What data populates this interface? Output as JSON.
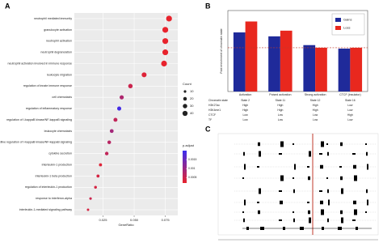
{
  "panel_labels": [
    "A",
    "B",
    "C"
  ],
  "chart_data": [
    {
      "type": "dot",
      "categories": [
        "neutrophil mediated immunity",
        "granulocyte activation",
        "neutrophil activation",
        "neutrophil degranulation",
        "neutrophil activation involved in immune response",
        "leukocyte migration",
        "regulation of innate immune response",
        "cell chemotaxis",
        "regulation of inflammatory response",
        "regulation of I-kappaB kinase/NF-kappaB signaling",
        "leukocyte chemotaxis",
        "positive regulation of I-kappaB kinase/NF-kappaB signaling",
        "cytokine secretion",
        "interleukin-1 production",
        "interleukin-1 beta production",
        "regulation of interleukin-1 production",
        "response to interferon-alpha",
        "interleukin-1-mediated signaling pathway"
      ],
      "values": [
        0.078,
        0.075,
        0.075,
        0.075,
        0.074,
        0.058,
        0.047,
        0.04,
        0.038,
        0.035,
        0.032,
        0.03,
        0.028,
        0.023,
        0.021,
        0.019,
        0.015,
        0.013
      ],
      "sizes": [
        52,
        52,
        52,
        51,
        51,
        37,
        30,
        27,
        26,
        24,
        22,
        20,
        19,
        15,
        14,
        12,
        10,
        9
      ],
      "color_values": [
        0.0002,
        0.0002,
        0.0002,
        0.0002,
        0.0002,
        0.0003,
        0.0005,
        0.0008,
        0.0019,
        0.0006,
        0.0009,
        0.0007,
        0.0006,
        0.0003,
        0.0004,
        0.0004,
        0.0005,
        0.0004
      ],
      "x_label": "GeneRatio",
      "xlim": [
        0.002,
        0.085
      ],
      "xticks": [
        {
          "value": 0.025,
          "label": "0.025"
        },
        {
          "value": 0.05,
          "label": "0.050"
        },
        {
          "value": 0.075,
          "label": "0.075"
        }
      ],
      "grid": true,
      "size_legend": {
        "title": "Count",
        "values": [
          10,
          20,
          30,
          40
        ]
      },
      "color_legend": {
        "title": "p.adjust",
        "clim": [
          0.0002,
          0.002
        ],
        "ticks": [
          0.0005,
          0.001,
          0.0015
        ],
        "colors": [
          "#e8232d",
          "#3a2df0"
        ]
      }
    },
    {
      "type": "bar",
      "categories": [
        "Activation",
        "Poised activation",
        "Strong activation",
        "CTCF (insulator)"
      ],
      "series": [
        {
          "name": "Gains",
          "color": "#1f2a9a",
          "values": [
            1.35,
            1.26,
            1.06,
            0.98
          ]
        },
        {
          "name": "Loss",
          "color": "#e8281e",
          "values": [
            1.6,
            1.39,
            1.0,
            1.0
          ]
        }
      ],
      "y_label": "Fold enrichment of chromatin state",
      "ylim": [
        0,
        1.85
      ],
      "ref_line": 1,
      "legend": "top-right"
    }
  ],
  "table": {
    "rows": [
      [
        "Chromatin state",
        "State 2",
        "State 11",
        "State 12",
        "State 16"
      ],
      [
        "H3K27ac",
        "High",
        "High",
        "High",
        "Low"
      ],
      [
        "H3K4me1",
        "High",
        "High",
        "High",
        "Low"
      ],
      [
        "CTCF",
        "Low",
        "Low",
        "Low",
        "High"
      ],
      [
        "TF",
        "Low",
        "Low",
        "Low",
        "Low"
      ]
    ]
  }
}
